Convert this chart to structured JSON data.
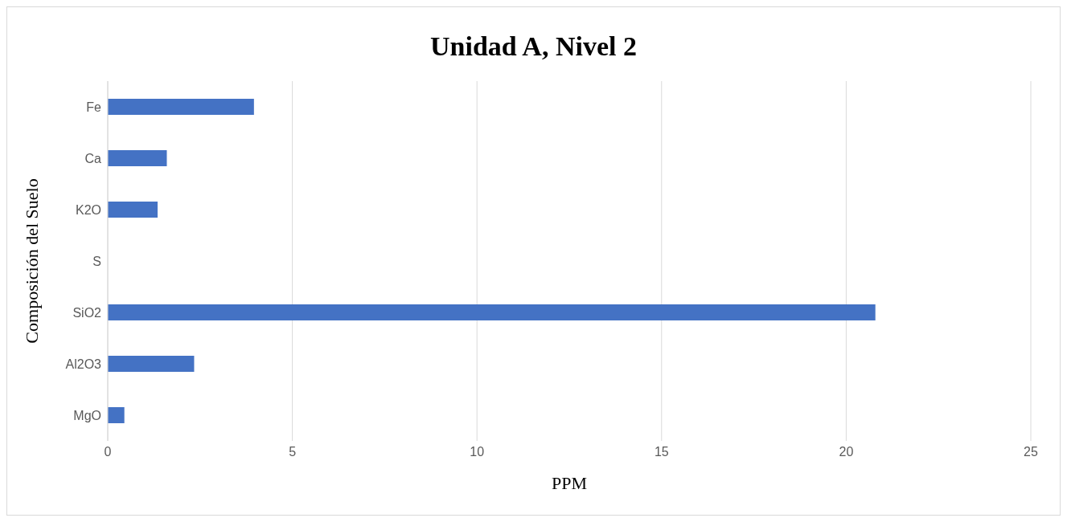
{
  "chart_data": {
    "type": "bar",
    "orientation": "horizontal",
    "title": "Unidad A, Nivel 2",
    "xlabel": "PPM",
    "ylabel": "Composición del Suelo",
    "categories": [
      "Fe",
      "Ca",
      "K2O",
      "S",
      "SiO2",
      "Al2O3",
      "MgO"
    ],
    "values": [
      3.96,
      1.6,
      1.35,
      0,
      20.79,
      2.34,
      0.45
    ],
    "color": "#4472c4",
    "xlim": [
      0,
      25
    ],
    "xticks": [
      0,
      5,
      10,
      15,
      20,
      25
    ],
    "grid": "x"
  }
}
